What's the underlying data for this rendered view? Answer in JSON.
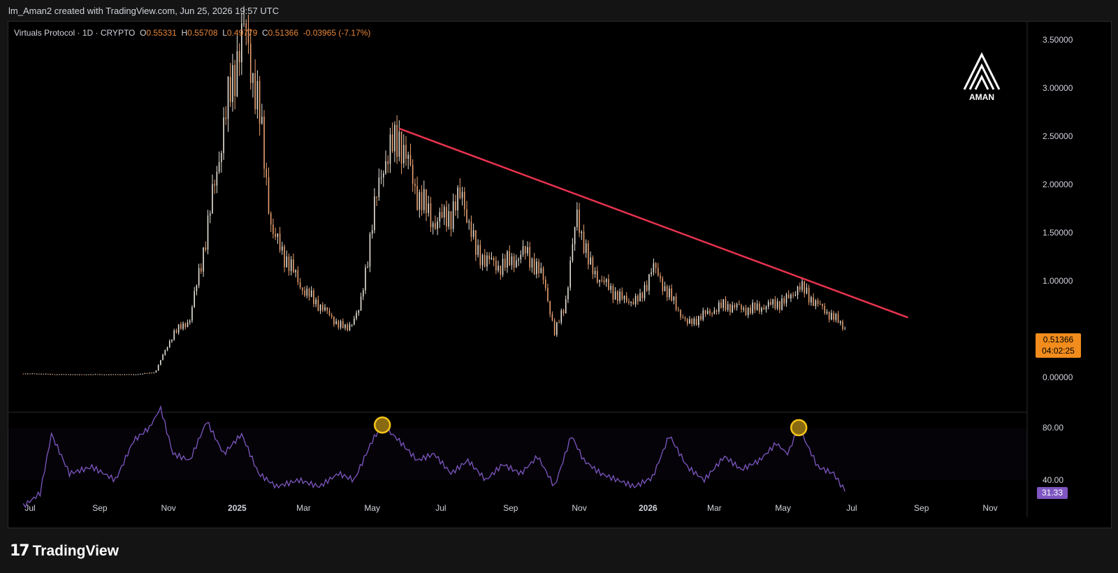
{
  "header": {
    "text": "lm_Aman2 created with TradingView.com, Jun 25, 2026 19:57 UTC"
  },
  "legend": {
    "symbol": "Virtuals Protocol · 1D · CRYPTO",
    "open_label": "O",
    "open": "0.55331",
    "high_label": "H",
    "high": "0.55708",
    "low_label": "L",
    "low": "0.49779",
    "close_label": "C",
    "close": "0.51366",
    "change": "-0.03965 (-7.17%)"
  },
  "price_tag": {
    "price": "0.51366",
    "countdown": "04:02:25"
  },
  "rsi_tag": {
    "value": "31.33"
  },
  "watermark": {
    "text": "AMAN"
  },
  "footer": {
    "brand": "TradingView",
    "mark": "17"
  },
  "colors": {
    "candle": "#e8a070",
    "trendline": "#e8334f",
    "rsi": "#7e57c2",
    "price_tag": "#f28c1c",
    "highlight": "#f5c518"
  },
  "chart_data": {
    "type": "line",
    "main": {
      "series_kind": "candlestick",
      "y_ticks": [
        "3.50000",
        "3.00000",
        "2.50000",
        "2.00000",
        "1.50000",
        "1.00000",
        "0.00000"
      ],
      "ylim": [
        -0.3,
        3.75
      ],
      "x_ticks": [
        "Jul",
        "Sep",
        "Nov",
        "2025",
        "Mar",
        "May",
        "Jul",
        "Sep",
        "Nov",
        "2026",
        "Mar",
        "May",
        "Jul",
        "Sep",
        "Nov"
      ],
      "x_tick_dates": [
        "2024-07-01",
        "2024-09-01",
        "2024-11-01",
        "2025-01-01",
        "2025-03-01",
        "2025-05-01",
        "2025-07-01",
        "2025-09-01",
        "2025-11-01",
        "2026-01-01",
        "2026-03-01",
        "2026-05-01",
        "2026-07-01",
        "2026-09-01",
        "2026-11-01"
      ],
      "x": [
        "2024-06-25",
        "2024-08-01",
        "2024-09-01",
        "2024-10-01",
        "2024-10-20",
        "2024-11-05",
        "2024-11-20",
        "2024-12-05",
        "2024-12-20",
        "2025-01-02",
        "2025-01-08",
        "2025-01-20",
        "2025-02-01",
        "2025-02-15",
        "2025-03-01",
        "2025-03-15",
        "2025-04-01",
        "2025-04-08",
        "2025-04-20",
        "2025-05-01",
        "2025-05-10",
        "2025-05-25",
        "2025-06-10",
        "2025-06-25",
        "2025-07-10",
        "2025-07-20",
        "2025-08-01",
        "2025-08-20",
        "2025-09-01",
        "2025-09-15",
        "2025-10-01",
        "2025-10-10",
        "2025-10-20",
        "2025-10-30",
        "2025-11-10",
        "2025-11-25",
        "2025-12-10",
        "2025-12-25",
        "2026-01-05",
        "2026-01-20",
        "2026-02-05",
        "2026-02-20",
        "2026-03-10",
        "2026-04-01",
        "2026-04-20",
        "2026-05-05",
        "2026-05-15",
        "2026-06-01",
        "2026-06-15",
        "2026-06-25"
      ],
      "close": [
        0.04,
        0.03,
        0.03,
        0.03,
        0.05,
        0.45,
        0.6,
        1.5,
        2.6,
        3.4,
        3.6,
        2.8,
        1.5,
        1.2,
        0.9,
        0.75,
        0.55,
        0.5,
        0.7,
        1.6,
        2.2,
        2.5,
        1.9,
        1.6,
        1.7,
        1.9,
        1.3,
        1.15,
        1.2,
        1.3,
        1.0,
        0.45,
        0.8,
        1.7,
        1.15,
        0.95,
        0.8,
        0.8,
        1.15,
        0.85,
        0.55,
        0.65,
        0.75,
        0.7,
        0.75,
        0.8,
        0.95,
        0.75,
        0.62,
        0.51366
      ]
    },
    "trendline": {
      "points": [
        {
          "x": "2025-05-25",
          "y": 2.58
        },
        {
          "x": "2026-08-20",
          "y": 0.62
        }
      ]
    },
    "rsi": {
      "y_ticks": [
        "80.00",
        "40.00"
      ],
      "ylim": [
        15,
        100
      ],
      "x": [
        "2024-06-25",
        "2024-07-10",
        "2024-07-20",
        "2024-08-05",
        "2024-08-25",
        "2024-09-15",
        "2024-10-01",
        "2024-10-15",
        "2024-10-25",
        "2024-11-05",
        "2024-11-20",
        "2024-12-05",
        "2024-12-20",
        "2025-01-05",
        "2025-01-20",
        "2025-02-05",
        "2025-02-25",
        "2025-03-15",
        "2025-04-01",
        "2025-04-15",
        "2025-05-01",
        "2025-05-10",
        "2025-05-25",
        "2025-06-10",
        "2025-06-25",
        "2025-07-10",
        "2025-07-25",
        "2025-08-10",
        "2025-08-25",
        "2025-09-10",
        "2025-09-25",
        "2025-10-10",
        "2025-10-25",
        "2025-11-05",
        "2025-11-20",
        "2025-12-05",
        "2025-12-20",
        "2026-01-05",
        "2026-01-20",
        "2026-02-05",
        "2026-02-20",
        "2026-03-10",
        "2026-03-25",
        "2026-04-10",
        "2026-04-25",
        "2026-05-05",
        "2026-05-15",
        "2026-06-01",
        "2026-06-15",
        "2026-06-25"
      ],
      "values": [
        20,
        30,
        75,
        45,
        50,
        40,
        70,
        80,
        95,
        60,
        55,
        85,
        60,
        75,
        45,
        35,
        40,
        35,
        45,
        40,
        70,
        82,
        70,
        55,
        60,
        45,
        55,
        40,
        52,
        45,
        58,
        35,
        74,
        55,
        45,
        40,
        35,
        42,
        74,
        50,
        40,
        58,
        48,
        55,
        68,
        60,
        80,
        50,
        45,
        31.33
      ],
      "highlights": [
        {
          "x": "2025-05-10",
          "y": 82
        },
        {
          "x": "2026-05-15",
          "y": 80
        }
      ]
    }
  }
}
